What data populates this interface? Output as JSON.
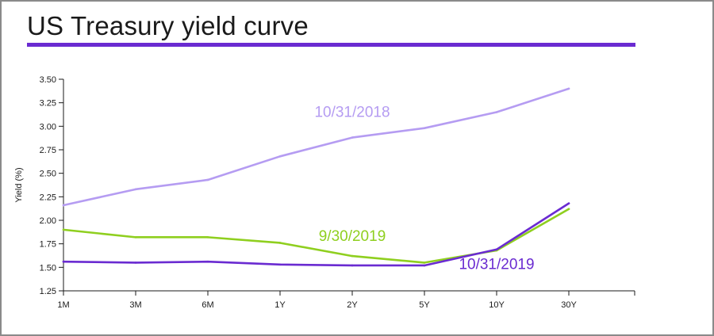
{
  "page": {
    "title": "US Treasury yield curve",
    "accent_color": "#6a2bd1"
  },
  "chart_data": {
    "type": "line",
    "title": "US Treasury yield curve",
    "xlabel": "",
    "ylabel": "Yield (%)",
    "categories": [
      "1M",
      "3M",
      "6M",
      "1Y",
      "2Y",
      "5Y",
      "10Y",
      "30Y"
    ],
    "ylim": [
      1.25,
      3.5
    ],
    "yticks": [
      "1.25",
      "1.50",
      "1.75",
      "2.00",
      "2.25",
      "2.50",
      "2.75",
      "3.00",
      "3.25",
      "3.50"
    ],
    "grid": false,
    "series": [
      {
        "name": "10/31/2018",
        "color": "#b59cf2",
        "values": [
          2.16,
          2.33,
          2.43,
          2.68,
          2.88,
          2.98,
          3.15,
          3.4
        ],
        "label_at": {
          "x": "2Y",
          "y": 3.1
        }
      },
      {
        "name": "9/30/2019",
        "color": "#8fcf1f",
        "values": [
          1.9,
          1.82,
          1.82,
          1.76,
          1.62,
          1.55,
          1.68,
          2.12
        ],
        "label_at": {
          "x": "2Y",
          "y": 1.78
        }
      },
      {
        "name": "10/31/2019",
        "color": "#6a2bd1",
        "values": [
          1.56,
          1.55,
          1.56,
          1.53,
          1.52,
          1.52,
          1.69,
          2.18
        ],
        "label_at": {
          "x": "10Y",
          "y": 1.48
        }
      }
    ]
  }
}
